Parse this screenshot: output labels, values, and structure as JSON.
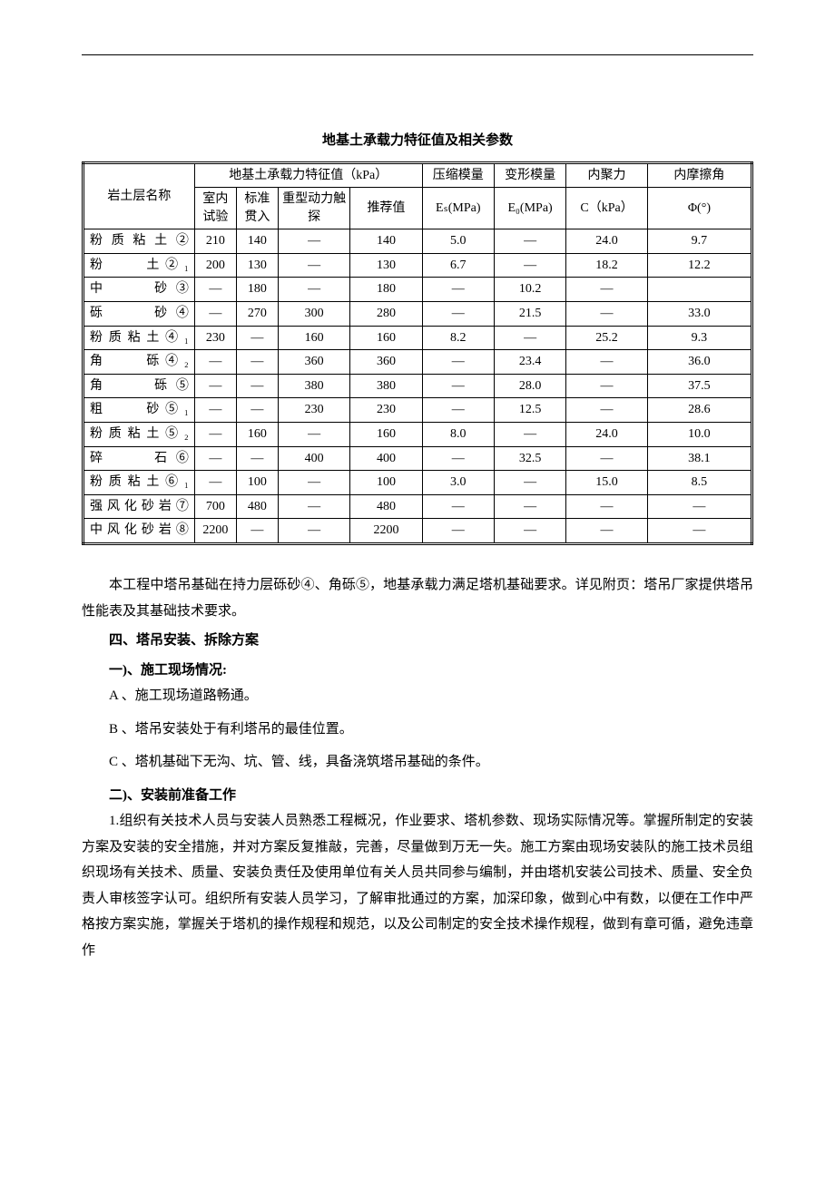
{
  "title": "地基土承载力特征值及相关参数",
  "headers": {
    "col1": "岩土层名称",
    "col2_group": "地基土承载力特征值（kPa）",
    "col3": "压缩模量",
    "col4": "变形模量",
    "col5": "内聚力",
    "col6": "内摩擦角",
    "sub1": "室内试验",
    "sub2": "标准贯入",
    "sub3": "重型动力触探",
    "sub4": "推荐值",
    "sub5": "Eₛ(MPa)",
    "sub6": "E₀(MPa)",
    "sub7": "C（kPa）",
    "sub8": "Φ(°)"
  },
  "rows": [
    {
      "name": "粉质粘土②",
      "v1": "210",
      "v2": "140",
      "v3": "—",
      "v4": "140",
      "v5": "5.0",
      "v6": "—",
      "v7": "24.0",
      "v8": "9.7"
    },
    {
      "name": "粉　　土②₁",
      "v1": "200",
      "v2": "130",
      "v3": "—",
      "v4": "130",
      "v5": "6.7",
      "v6": "—",
      "v7": "18.2",
      "v8": "12.2"
    },
    {
      "name": "中　　砂③",
      "v1": "—",
      "v2": "180",
      "v3": "—",
      "v4": "180",
      "v5": "—",
      "v6": "10.2",
      "v7": "—",
      "v8": ""
    },
    {
      "name": "砾　　砂④",
      "v1": "—",
      "v2": "270",
      "v3": "300",
      "v4": "280",
      "v5": "—",
      "v6": "21.5",
      "v7": "—",
      "v8": "33.0"
    },
    {
      "name": "粉质粘土④₁",
      "v1": "230",
      "v2": "—",
      "v3": "160",
      "v4": "160",
      "v5": "8.2",
      "v6": "—",
      "v7": "25.2",
      "v8": "9.3"
    },
    {
      "name": "角　　砾④₂",
      "v1": "—",
      "v2": "—",
      "v3": "360",
      "v4": "360",
      "v5": "—",
      "v6": "23.4",
      "v7": "—",
      "v8": "36.0"
    },
    {
      "name": "角　　砾⑤",
      "v1": "—",
      "v2": "—",
      "v3": "380",
      "v4": "380",
      "v5": "—",
      "v6": "28.0",
      "v7": "—",
      "v8": "37.5"
    },
    {
      "name": "粗　　砂⑤₁",
      "v1": "—",
      "v2": "—",
      "v3": "230",
      "v4": "230",
      "v5": "—",
      "v6": "12.5",
      "v7": "—",
      "v8": "28.6"
    },
    {
      "name": "粉质粘土⑤₂",
      "v1": "—",
      "v2": "160",
      "v3": "—",
      "v4": "160",
      "v5": "8.0",
      "v6": "—",
      "v7": "24.0",
      "v8": "10.0"
    },
    {
      "name": "碎　　石⑥",
      "v1": "—",
      "v2": "—",
      "v3": "400",
      "v4": "400",
      "v5": "—",
      "v6": "32.5",
      "v7": "—",
      "v8": "38.1"
    },
    {
      "name": "粉质粘土⑥₁",
      "v1": "—",
      "v2": "100",
      "v3": "—",
      "v4": "100",
      "v5": "3.0",
      "v6": "—",
      "v7": "15.0",
      "v8": "8.5"
    },
    {
      "name": "强风化砂岩⑦",
      "v1": "700",
      "v2": "480",
      "v3": "—",
      "v4": "480",
      "v5": "—",
      "v6": "—",
      "v7": "—",
      "v8": "—"
    },
    {
      "name": "中风化砂岩⑧",
      "v1": "2200",
      "v2": "—",
      "v3": "—",
      "v4": "2200",
      "v5": "—",
      "v6": "—",
      "v7": "—",
      "v8": "—"
    }
  ],
  "para1": "本工程中塔吊基础在持力层砾砂④、角砾⑤，地基承载力满足塔机基础要求。详见附页：塔吊厂家提供塔吊性能表及其基础技术要求。",
  "h1": "四、塔吊安装、拆除方案",
  "h2": "一)、施工现场情况:",
  "item_a": "A 、施工现场道路畅通。",
  "item_b": "B 、塔吊安装处于有利塔吊的最佳位置。",
  "item_c": "C 、塔机基础下无沟、坑、管、线，具备浇筑塔吊基础的条件。",
  "h3": "二)、安装前准备工作",
  "para2": "1.组织有关技术人员与安装人员熟悉工程概况，作业要求、塔机参数、现场实际情况等。掌握所制定的安装方案及安装的安全措施，并对方案反复推敲，完善，尽量做到万无一失。施工方案由现场安装队的施工技术员组织现场有关技术、质量、安装负责任及使用单位有关人员共同参与编制，并由塔机安装公司技术、质量、安全负责人审核签字认可。组织所有安装人员学习，了解审批通过的方案，加深印象，做到心中有数，以便在工作中严格按方案实施，掌握关于塔机的操作规程和规范，以及公司制定的安全技术操作规程，做到有章可循，避免违章作",
  "table_style": {
    "border_color": "#000000",
    "background": "#ffffff",
    "text_color": "#000000",
    "font_size_cell": 14,
    "font_size_body": 15
  }
}
